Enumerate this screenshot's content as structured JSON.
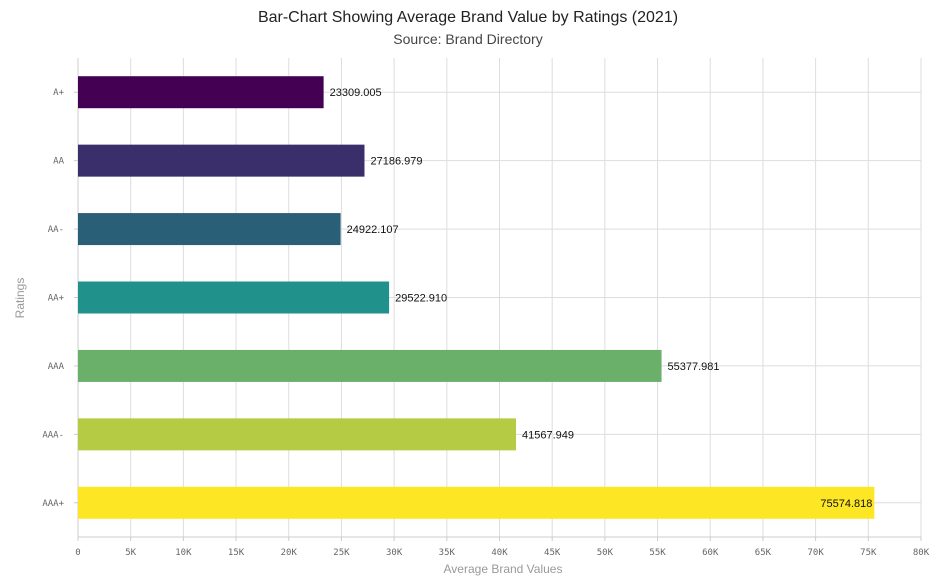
{
  "chart_data": {
    "type": "bar",
    "orientation": "horizontal",
    "title": "Bar-Chart Showing Average Brand Value by Ratings (2021)",
    "subtitle": "Source: Brand Directory",
    "xlabel": "Average Brand Values",
    "ylabel": "Ratings",
    "categories": [
      "A+",
      "AA",
      "AA-",
      "AA+",
      "AAA",
      "AAA-",
      "AAA+"
    ],
    "values": [
      23309.005,
      27186.979,
      24922.107,
      29522.91,
      55377.981,
      41567.949,
      75574.818
    ],
    "value_labels": [
      "23309.005",
      "27186.979",
      "24922.107",
      "29522.910",
      "55377.981",
      "41567.949",
      "75574.818"
    ],
    "colors": [
      "#440154",
      "#3b2f6b",
      "#2a5f78",
      "#21918c",
      "#6aaf6a",
      "#b5cb43",
      "#fde725"
    ],
    "xlim": [
      0,
      80000
    ],
    "x_ticks": [
      0,
      5000,
      10000,
      15000,
      20000,
      25000,
      30000,
      35000,
      40000,
      45000,
      50000,
      55000,
      60000,
      65000,
      70000,
      75000,
      80000
    ],
    "x_tick_labels": [
      "0",
      "5K",
      "10K",
      "15K",
      "20K",
      "25K",
      "30K",
      "35K",
      "40K",
      "45K",
      "50K",
      "55K",
      "60K",
      "65K",
      "70K",
      "75K",
      "80K"
    ],
    "grid": true,
    "legend": "none"
  }
}
